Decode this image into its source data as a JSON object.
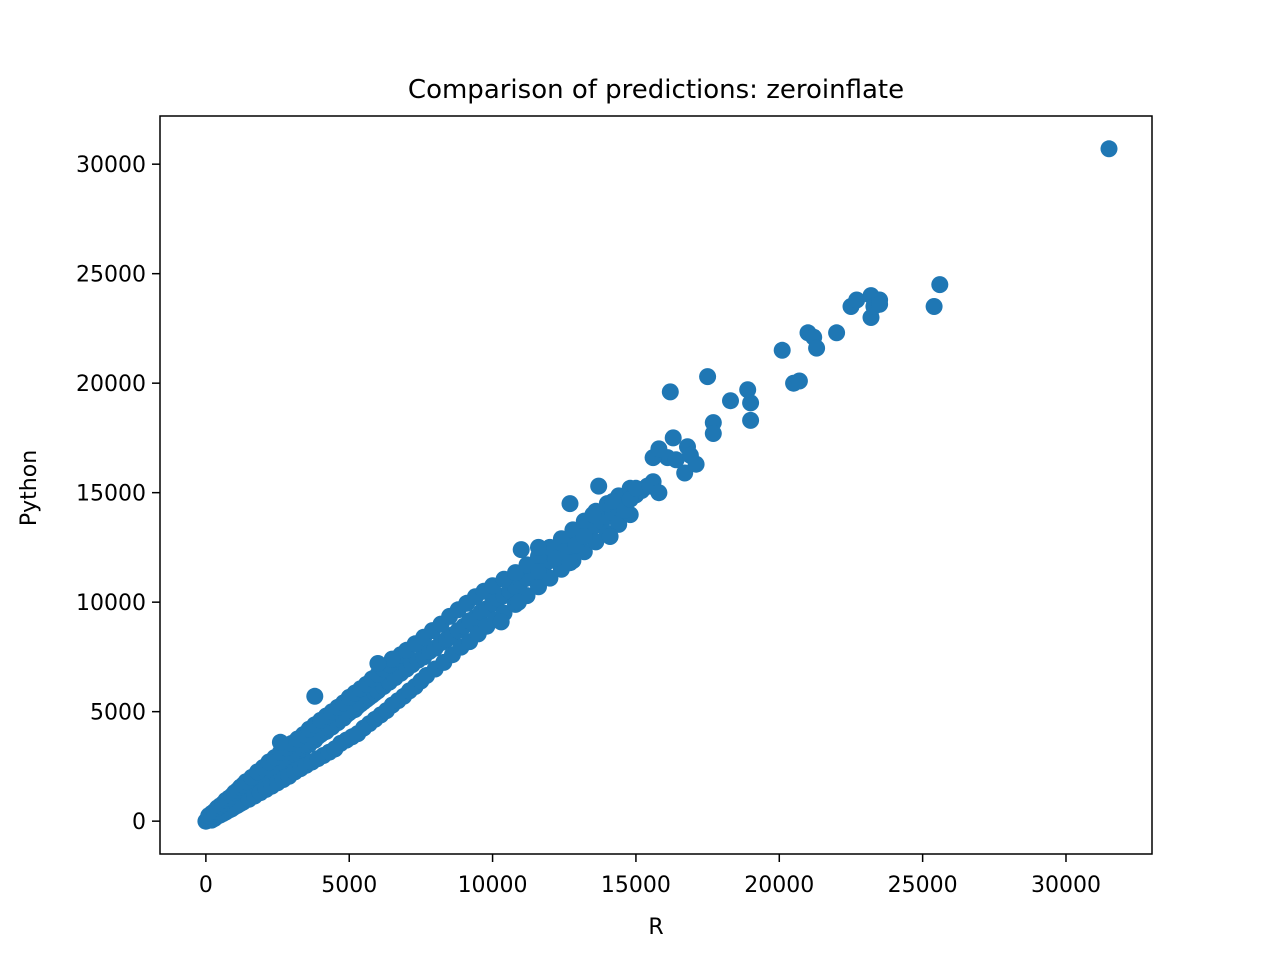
{
  "chart_data": {
    "type": "scatter",
    "title": "Comparison of predictions: zeroinflate",
    "xlabel": "R",
    "ylabel": "Python",
    "xlim": [
      -1600,
      33000
    ],
    "ylim": [
      -1500,
      32200
    ],
    "xticks": [
      0,
      5000,
      10000,
      15000,
      20000,
      25000,
      30000
    ],
    "yticks": [
      0,
      5000,
      10000,
      15000,
      20000,
      25000,
      30000
    ],
    "xtick_labels": [
      "0",
      "5000",
      "10000",
      "15000",
      "20000",
      "25000",
      "30000"
    ],
    "ytick_labels": [
      "0",
      "5000",
      "10000",
      "15000",
      "20000",
      "25000",
      "30000"
    ],
    "grid": false,
    "marker_color": "#1f77b4",
    "points": [
      [
        0,
        0
      ],
      [
        40,
        30
      ],
      [
        80,
        60
      ],
      [
        120,
        100
      ],
      [
        160,
        150
      ],
      [
        200,
        180
      ],
      [
        250,
        220
      ],
      [
        300,
        280
      ],
      [
        350,
        300
      ],
      [
        400,
        380
      ],
      [
        450,
        420
      ],
      [
        500,
        460
      ],
      [
        550,
        500
      ],
      [
        600,
        560
      ],
      [
        700,
        640
      ],
      [
        800,
        720
      ],
      [
        900,
        850
      ],
      [
        1000,
        940
      ],
      [
        1100,
        1050
      ],
      [
        1200,
        1120
      ],
      [
        1300,
        1250
      ],
      [
        1400,
        1300
      ],
      [
        1500,
        1450
      ],
      [
        1600,
        1520
      ],
      [
        1700,
        1650
      ],
      [
        1800,
        1700
      ],
      [
        1900,
        1850
      ],
      [
        2000,
        1950
      ],
      [
        2100,
        2000
      ],
      [
        2200,
        2150
      ],
      [
        2300,
        2200
      ],
      [
        2400,
        2350
      ],
      [
        2500,
        2450
      ],
      [
        2600,
        2500
      ],
      [
        2700,
        2650
      ],
      [
        2800,
        2700
      ],
      [
        2900,
        2850
      ],
      [
        3000,
        2950
      ],
      [
        3100,
        3050
      ],
      [
        3200,
        3100
      ],
      [
        3300,
        3250
      ],
      [
        3400,
        3300
      ],
      [
        3500,
        3450
      ],
      [
        3600,
        3500
      ],
      [
        3700,
        3650
      ],
      [
        3800,
        3700
      ],
      [
        3900,
        3850
      ],
      [
        4000,
        3950
      ],
      [
        4100,
        4050
      ],
      [
        4200,
        4100
      ],
      [
        4300,
        4250
      ],
      [
        4400,
        4300
      ],
      [
        4500,
        4450
      ],
      [
        4600,
        4500
      ],
      [
        4700,
        4650
      ],
      [
        4800,
        4700
      ],
      [
        4900,
        4850
      ],
      [
        5000,
        4950
      ],
      [
        5100,
        5050
      ],
      [
        5200,
        5100
      ],
      [
        5300,
        5250
      ],
      [
        5400,
        5350
      ],
      [
        5500,
        5450
      ],
      [
        5600,
        5550
      ],
      [
        5700,
        5650
      ],
      [
        5800,
        5750
      ],
      [
        5900,
        5850
      ],
      [
        6000,
        5950
      ],
      [
        6200,
        6150
      ],
      [
        6400,
        6350
      ],
      [
        6600,
        6550
      ],
      [
        6800,
        6750
      ],
      [
        7000,
        6950
      ],
      [
        7200,
        7150
      ],
      [
        7400,
        7350
      ],
      [
        7600,
        7500
      ],
      [
        7800,
        7750
      ],
      [
        8000,
        7900
      ],
      [
        8200,
        8150
      ],
      [
        8400,
        8300
      ],
      [
        8600,
        8500
      ],
      [
        8800,
        8700
      ],
      [
        9000,
        8900
      ],
      [
        9200,
        9150
      ],
      [
        9400,
        9300
      ],
      [
        9600,
        9550
      ],
      [
        9800,
        9700
      ],
      [
        10000,
        9950
      ],
      [
        10200,
        10150
      ],
      [
        10400,
        10300
      ],
      [
        10600,
        10500
      ],
      [
        10800,
        10700
      ],
      [
        11000,
        10950
      ],
      [
        11200,
        11100
      ],
      [
        11400,
        11300
      ],
      [
        11600,
        11500
      ],
      [
        11800,
        11700
      ],
      [
        12000,
        11900
      ],
      [
        12200,
        12100
      ],
      [
        12400,
        12300
      ],
      [
        12600,
        12500
      ],
      [
        12800,
        12700
      ],
      [
        13000,
        12900
      ],
      [
        13200,
        13100
      ],
      [
        13400,
        13300
      ],
      [
        13600,
        13500
      ],
      [
        13800,
        13700
      ],
      [
        14000,
        13900
      ],
      [
        14200,
        14100
      ],
      [
        14400,
        14300
      ],
      [
        14600,
        14500
      ],
      [
        14800,
        14700
      ],
      [
        15000,
        14900
      ],
      [
        15200,
        15100
      ],
      [
        15400,
        15300
      ],
      [
        15600,
        15500
      ],
      [
        200,
        50
      ],
      [
        300,
        120
      ],
      [
        400,
        220
      ],
      [
        500,
        280
      ],
      [
        600,
        350
      ],
      [
        700,
        420
      ],
      [
        800,
        500
      ],
      [
        900,
        560
      ],
      [
        1000,
        650
      ],
      [
        1100,
        720
      ],
      [
        1200,
        800
      ],
      [
        1300,
        870
      ],
      [
        1500,
        1000
      ],
      [
        1700,
        1150
      ],
      [
        1900,
        1300
      ],
      [
        2100,
        1450
      ],
      [
        2300,
        1600
      ],
      [
        2500,
        1750
      ],
      [
        2700,
        1900
      ],
      [
        2900,
        2050
      ],
      [
        3100,
        2250
      ],
      [
        3300,
        2400
      ],
      [
        3500,
        2550
      ],
      [
        3700,
        2700
      ],
      [
        3900,
        2850
      ],
      [
        4100,
        3000
      ],
      [
        4300,
        3150
      ],
      [
        4500,
        3300
      ],
      [
        4700,
        3550
      ],
      [
        4900,
        3700
      ],
      [
        5100,
        3850
      ],
      [
        5300,
        4000
      ],
      [
        5500,
        4250
      ],
      [
        5700,
        4450
      ],
      [
        5900,
        4650
      ],
      [
        6100,
        4850
      ],
      [
        6300,
        5050
      ],
      [
        6500,
        5300
      ],
      [
        6700,
        5500
      ],
      [
        6900,
        5700
      ],
      [
        7100,
        5950
      ],
      [
        7300,
        6150
      ],
      [
        7500,
        6400
      ],
      [
        7700,
        6650
      ],
      [
        8000,
        6950
      ],
      [
        8300,
        7250
      ],
      [
        8600,
        7600
      ],
      [
        8900,
        7950
      ],
      [
        9200,
        8200
      ],
      [
        9500,
        8550
      ],
      [
        9800,
        8900
      ],
      [
        10100,
        9200
      ],
      [
        10400,
        9500
      ],
      [
        10800,
        9900
      ],
      [
        11200,
        10300
      ],
      [
        11600,
        10700
      ],
      [
        12000,
        11100
      ],
      [
        12400,
        11500
      ],
      [
        12800,
        11900
      ],
      [
        13200,
        12300
      ],
      [
        13600,
        12750
      ],
      [
        14000,
        13150
      ],
      [
        14400,
        13550
      ],
      [
        14800,
        14000
      ],
      [
        100,
        250
      ],
      [
        200,
        350
      ],
      [
        300,
        450
      ],
      [
        400,
        600
      ],
      [
        500,
        700
      ],
      [
        600,
        800
      ],
      [
        700,
        950
      ],
      [
        800,
        1050
      ],
      [
        900,
        1150
      ],
      [
        1000,
        1300
      ],
      [
        1100,
        1400
      ],
      [
        1200,
        1550
      ],
      [
        1300,
        1650
      ],
      [
        1400,
        1800
      ],
      [
        1600,
        2000
      ],
      [
        1800,
        2250
      ],
      [
        2000,
        2450
      ],
      [
        2200,
        2700
      ],
      [
        2400,
        2900
      ],
      [
        2600,
        3150
      ],
      [
        2800,
        3350
      ],
      [
        3000,
        3550
      ],
      [
        3200,
        3750
      ],
      [
        3400,
        3950
      ],
      [
        3600,
        4200
      ],
      [
        3800,
        4400
      ],
      [
        4000,
        4600
      ],
      [
        4200,
        4800
      ],
      [
        4400,
        5000
      ],
      [
        4600,
        5200
      ],
      [
        4800,
        5400
      ],
      [
        5000,
        5650
      ],
      [
        5200,
        5850
      ],
      [
        5400,
        6050
      ],
      [
        5600,
        6250
      ],
      [
        5800,
        6500
      ],
      [
        6000,
        6700
      ],
      [
        6200,
        6950
      ],
      [
        6400,
        7150
      ],
      [
        6600,
        7400
      ],
      [
        6800,
        7600
      ],
      [
        7000,
        7800
      ],
      [
        7300,
        8100
      ],
      [
        7600,
        8400
      ],
      [
        7900,
        8700
      ],
      [
        8200,
        9000
      ],
      [
        8500,
        9350
      ],
      [
        8800,
        9650
      ],
      [
        9100,
        9950
      ],
      [
        9400,
        10250
      ],
      [
        9700,
        10500
      ],
      [
        10000,
        10750
      ],
      [
        10400,
        11050
      ],
      [
        10800,
        11350
      ],
      [
        11200,
        11700
      ],
      [
        11600,
        12100
      ],
      [
        12000,
        12500
      ],
      [
        12400,
        12900
      ],
      [
        12800,
        13300
      ],
      [
        13200,
        13700
      ],
      [
        13600,
        14150
      ],
      [
        14000,
        14500
      ],
      [
        14400,
        14850
      ],
      [
        14800,
        15200
      ],
      [
        3800,
        5700
      ],
      [
        4500,
        3300
      ],
      [
        6500,
        7400
      ],
      [
        6000,
        7200
      ],
      [
        2600,
        3600
      ],
      [
        11000,
        12400
      ],
      [
        11600,
        12500
      ],
      [
        12700,
        14500
      ],
      [
        12500,
        12300
      ],
      [
        12900,
        12600
      ],
      [
        10300,
        9100
      ],
      [
        10900,
        10000
      ],
      [
        11600,
        11400
      ],
      [
        12200,
        12000
      ],
      [
        12700,
        11800
      ],
      [
        13200,
        13000
      ],
      [
        13500,
        14000
      ],
      [
        13700,
        15300
      ],
      [
        14100,
        13000
      ],
      [
        14200,
        14600
      ],
      [
        14600,
        14200
      ],
      [
        14800,
        14700
      ],
      [
        15000,
        15200
      ],
      [
        15500,
        15300
      ],
      [
        15800,
        15000
      ],
      [
        16100,
        16600
      ],
      [
        16400,
        16500
      ],
      [
        16300,
        17500
      ],
      [
        15600,
        16600
      ],
      [
        15800,
        17000
      ],
      [
        16800,
        17100
      ],
      [
        16900,
        16700
      ],
      [
        16700,
        15900
      ],
      [
        17100,
        16300
      ],
      [
        16200,
        19600
      ],
      [
        17500,
        20300
      ],
      [
        17700,
        18200
      ],
      [
        17700,
        17700
      ],
      [
        18300,
        19200
      ],
      [
        18900,
        19700
      ],
      [
        19000,
        19100
      ],
      [
        19000,
        18300
      ],
      [
        20100,
        21500
      ],
      [
        20500,
        20000
      ],
      [
        20700,
        20100
      ],
      [
        21000,
        22300
      ],
      [
        21200,
        22100
      ],
      [
        21300,
        21600
      ],
      [
        22000,
        22300
      ],
      [
        22500,
        23500
      ],
      [
        22700,
        23800
      ],
      [
        23200,
        24000
      ],
      [
        23200,
        23000
      ],
      [
        23300,
        23500
      ],
      [
        23500,
        23800
      ],
      [
        23500,
        23600
      ],
      [
        25400,
        23500
      ],
      [
        25600,
        24500
      ],
      [
        31500,
        30700
      ]
    ]
  }
}
